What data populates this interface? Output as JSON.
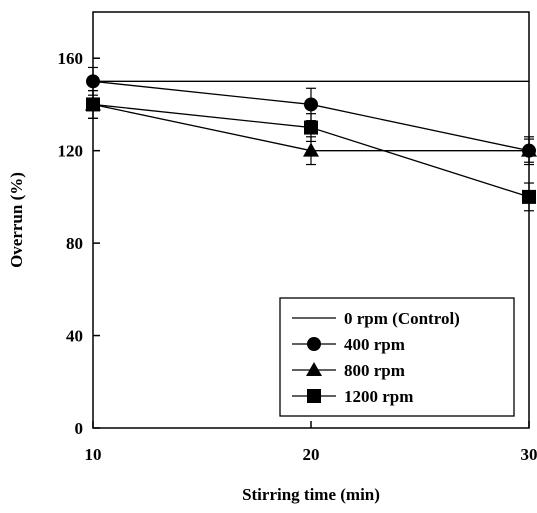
{
  "chart_data": {
    "type": "line",
    "title": "",
    "xlabel": "Stirring time (min)",
    "ylabel": "Overrun (%)",
    "x": [
      10,
      20,
      30
    ],
    "xlim": [
      10,
      30
    ],
    "ylim": [
      0,
      180
    ],
    "xticks": [
      10,
      20,
      30
    ],
    "yticks": [
      0,
      40,
      80,
      120,
      160
    ],
    "grid": false,
    "legend_position": "bottom-right",
    "series": [
      {
        "name": "0 rpm (Control)",
        "marker": "none",
        "values": [
          150,
          150,
          150
        ],
        "errors": [
          0,
          0,
          0
        ]
      },
      {
        "name": "400 rpm",
        "marker": "circle",
        "values": [
          150,
          140,
          120
        ],
        "errors": [
          6,
          7,
          6
        ]
      },
      {
        "name": "800 rpm",
        "marker": "triangle",
        "values": [
          140,
          120,
          120
        ],
        "errors": [
          6,
          6,
          5
        ]
      },
      {
        "name": "1200 rpm",
        "marker": "square",
        "values": [
          140,
          130,
          100
        ],
        "errors": [
          6,
          6,
          6
        ]
      }
    ]
  }
}
